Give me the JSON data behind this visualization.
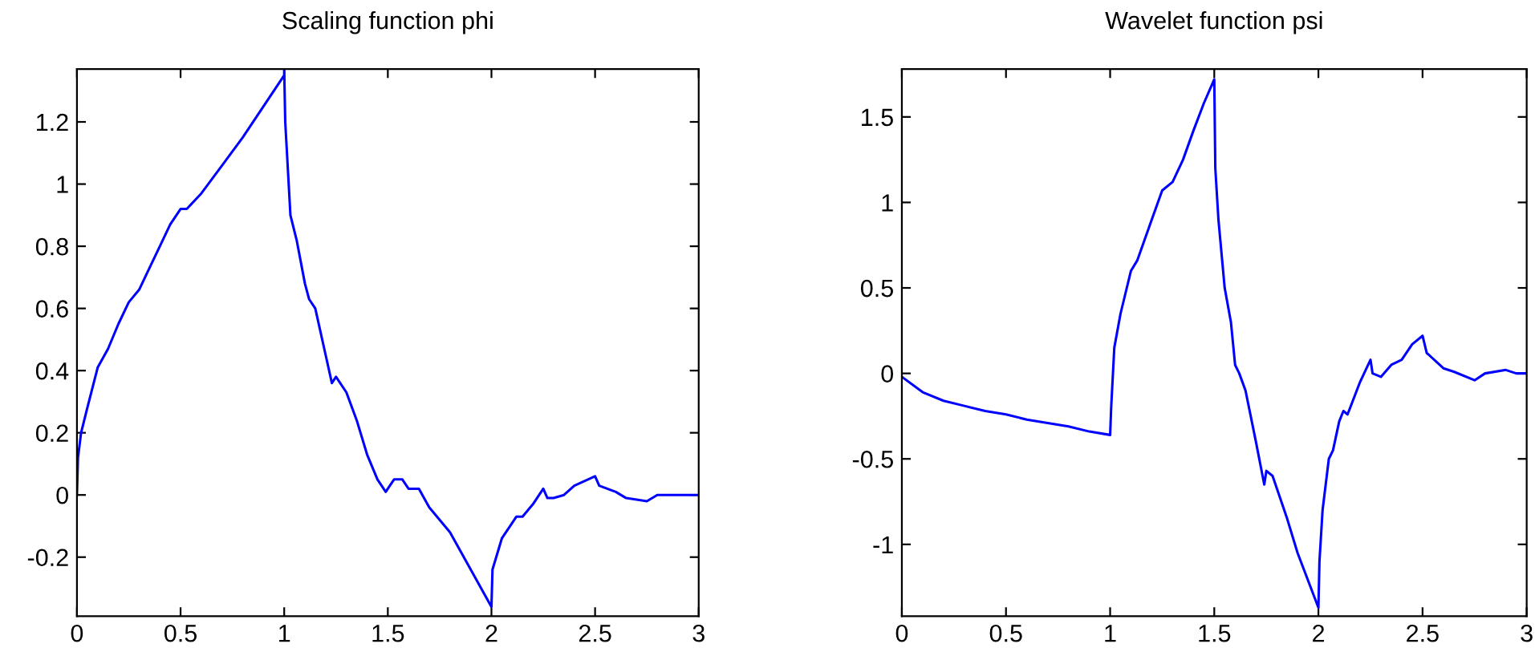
{
  "chart_data": [
    {
      "type": "line",
      "title": "Scaling function phi",
      "xlim": [
        0,
        3
      ],
      "ylim": [
        -0.39,
        1.37
      ],
      "xticks": [
        0,
        0.5,
        1,
        1.5,
        2,
        2.5,
        3
      ],
      "yticks": [
        -0.2,
        0,
        0.2,
        0.4,
        0.6,
        0.8,
        1,
        1.2
      ],
      "grid": false,
      "marker": "none",
      "line_style": "solid",
      "series": [
        {
          "color": "#0000ff",
          "x": [
            0,
            0.005,
            0.02,
            0.05,
            0.1,
            0.15,
            0.2,
            0.25,
            0.3,
            0.35,
            0.4,
            0.45,
            0.5,
            0.53,
            0.6,
            0.7,
            0.8,
            0.9,
            1.0,
            1.0,
            1.005,
            1.03,
            1.06,
            1.1,
            1.12,
            1.15,
            1.2,
            1.23,
            1.25,
            1.3,
            1.35,
            1.4,
            1.45,
            1.49,
            1.5,
            1.53,
            1.57,
            1.6,
            1.65,
            1.7,
            1.8,
            1.9,
            2.0,
            2.005,
            2.05,
            2.1,
            2.12,
            2.15,
            2.2,
            2.25,
            2.27,
            2.3,
            2.35,
            2.4,
            2.5,
            2.52,
            2.6,
            2.65,
            2.75,
            2.8,
            3.0
          ],
          "values": [
            0,
            0.12,
            0.2,
            0.28,
            0.41,
            0.47,
            0.55,
            0.62,
            0.66,
            0.73,
            0.8,
            0.87,
            0.92,
            0.92,
            0.97,
            1.06,
            1.15,
            1.25,
            1.35,
            1.37,
            1.2,
            0.9,
            0.82,
            0.68,
            0.63,
            0.6,
            0.45,
            0.36,
            0.38,
            0.33,
            0.24,
            0.13,
            0.05,
            0.01,
            0.02,
            0.05,
            0.05,
            0.02,
            0.02,
            -0.04,
            -0.12,
            -0.24,
            -0.36,
            -0.24,
            -0.14,
            -0.09,
            -0.07,
            -0.07,
            -0.03,
            0.02,
            -0.01,
            -0.01,
            0.0,
            0.03,
            0.06,
            0.03,
            0.01,
            -0.01,
            -0.02,
            0.0,
            0.0
          ]
        }
      ]
    },
    {
      "type": "line",
      "title": "Wavelet function psi",
      "xlim": [
        0,
        3
      ],
      "ylim": [
        -1.42,
        1.78
      ],
      "xticks": [
        0,
        0.5,
        1,
        1.5,
        2,
        2.5,
        3
      ],
      "yticks": [
        -1,
        -0.5,
        0,
        0.5,
        1,
        1.5
      ],
      "grid": false,
      "marker": "none",
      "line_style": "solid",
      "series": [
        {
          "color": "#0000ff",
          "x": [
            0,
            0.1,
            0.2,
            0.3,
            0.4,
            0.5,
            0.6,
            0.7,
            0.8,
            0.9,
            1.0,
            1.005,
            1.02,
            1.05,
            1.1,
            1.13,
            1.2,
            1.25,
            1.3,
            1.35,
            1.4,
            1.45,
            1.5,
            1.505,
            1.52,
            1.55,
            1.58,
            1.6,
            1.62,
            1.65,
            1.7,
            1.74,
            1.75,
            1.78,
            1.85,
            1.9,
            2.0,
            2.005,
            2.02,
            2.05,
            2.07,
            2.1,
            2.12,
            2.14,
            2.2,
            2.25,
            2.26,
            2.3,
            2.35,
            2.4,
            2.45,
            2.5,
            2.52,
            2.6,
            2.65,
            2.75,
            2.8,
            2.9,
            2.95,
            3.0
          ],
          "values": [
            -0.02,
            -0.11,
            -0.16,
            -0.19,
            -0.22,
            -0.24,
            -0.27,
            -0.29,
            -0.31,
            -0.34,
            -0.36,
            -0.2,
            0.15,
            0.35,
            0.6,
            0.66,
            0.9,
            1.07,
            1.12,
            1.25,
            1.42,
            1.58,
            1.72,
            1.2,
            0.9,
            0.5,
            0.3,
            0.05,
            0.0,
            -0.1,
            -0.4,
            -0.65,
            -0.57,
            -0.6,
            -0.85,
            -1.05,
            -1.37,
            -1.1,
            -0.8,
            -0.5,
            -0.45,
            -0.28,
            -0.22,
            -0.24,
            -0.05,
            0.08,
            0.0,
            -0.02,
            0.05,
            0.08,
            0.17,
            0.22,
            0.12,
            0.03,
            0.01,
            -0.04,
            0.0,
            0.02,
            0.0,
            0.0
          ]
        }
      ]
    }
  ]
}
